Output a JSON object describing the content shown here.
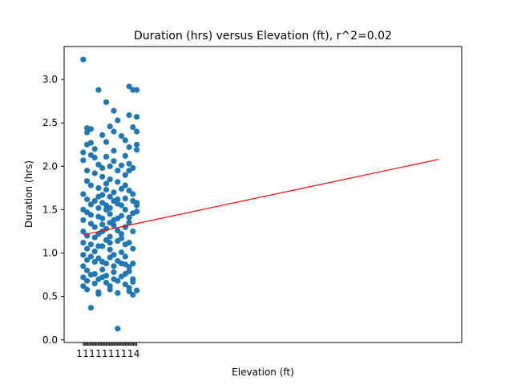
{
  "chart_data": {
    "type": "scatter",
    "title": "Duration (hrs) versus Elevation (ft), r^2=0.02",
    "xlabel": "Elevation (ft)",
    "ylabel": "Duration (hrs)",
    "ylim": [
      -0.03,
      3.38
    ],
    "xlim": [
      0,
      104
    ],
    "y_ticks": [
      "0.0",
      "0.5",
      "1.0",
      "1.5",
      "2.0",
      "2.5",
      "3.0"
    ],
    "y_tick_values": [
      0.0,
      0.5,
      1.0,
      1.5,
      2.0,
      2.5,
      3.0
    ],
    "x_tick_labels_overlapping": [
      "1",
      "4"
    ],
    "grid": false,
    "point_color": "#1f77b4",
    "fit_line_color": "#ff0000",
    "fit_line": {
      "x": [
        5,
        98
      ],
      "y": [
        1.21,
        2.08
      ]
    },
    "points": [
      [
        5,
        3.23
      ],
      [
        9,
        2.88
      ],
      [
        11,
        2.74
      ],
      [
        13,
        2.64
      ],
      [
        14,
        2.53
      ],
      [
        17,
        2.92
      ],
      [
        18,
        2.88
      ],
      [
        19,
        2.88
      ],
      [
        6,
        2.44
      ],
      [
        6,
        2.39
      ],
      [
        7,
        2.43
      ],
      [
        12,
        2.46
      ],
      [
        17,
        2.59
      ],
      [
        19,
        2.57
      ],
      [
        19,
        2.4
      ],
      [
        6,
        2.25
      ],
      [
        7,
        2.27
      ],
      [
        10,
        2.36
      ],
      [
        11,
        2.28
      ],
      [
        13,
        2.18
      ],
      [
        16,
        2.3
      ],
      [
        17,
        2.22
      ],
      [
        19,
        2.19
      ],
      [
        5,
        2.16
      ],
      [
        7,
        2.13
      ],
      [
        8,
        2.1
      ],
      [
        11,
        2.11
      ],
      [
        13,
        2.06
      ],
      [
        15,
        2.01
      ],
      [
        17,
        2.03
      ],
      [
        5,
        2.07
      ],
      [
        6,
        1.95
      ],
      [
        8,
        1.92
      ],
      [
        10,
        1.88
      ],
      [
        12,
        1.85
      ],
      [
        14,
        1.82
      ],
      [
        16,
        1.9
      ],
      [
        17,
        1.95
      ],
      [
        6,
        1.83
      ],
      [
        7,
        1.78
      ],
      [
        9,
        1.75
      ],
      [
        11,
        1.73
      ],
      [
        13,
        1.7
      ],
      [
        15,
        1.74
      ],
      [
        17,
        1.72
      ],
      [
        18,
        1.68
      ],
      [
        5,
        1.68
      ],
      [
        6,
        1.62
      ],
      [
        8,
        1.6
      ],
      [
        10,
        1.58
      ],
      [
        11,
        1.55
      ],
      [
        12,
        1.52
      ],
      [
        14,
        1.57
      ],
      [
        15,
        1.55
      ],
      [
        16,
        1.5
      ],
      [
        19,
        1.58
      ],
      [
        5,
        1.5
      ],
      [
        6,
        1.47
      ],
      [
        7,
        1.44
      ],
      [
        9,
        1.42
      ],
      [
        10,
        1.4
      ],
      [
        12,
        1.45
      ],
      [
        13,
        1.38
      ],
      [
        15,
        1.43
      ],
      [
        17,
        1.41
      ],
      [
        18,
        1.46
      ],
      [
        5,
        1.38
      ],
      [
        7,
        1.34
      ],
      [
        8,
        1.3
      ],
      [
        10,
        1.33
      ],
      [
        11,
        1.28
      ],
      [
        13,
        1.32
      ],
      [
        14,
        1.26
      ],
      [
        16,
        1.3
      ],
      [
        17,
        1.35
      ],
      [
        18,
        1.25
      ],
      [
        5,
        1.25
      ],
      [
        6,
        1.2
      ],
      [
        8,
        1.18
      ],
      [
        9,
        1.22
      ],
      [
        11,
        1.15
      ],
      [
        12,
        1.19
      ],
      [
        14,
        1.14
      ],
      [
        15,
        1.17
      ],
      [
        17,
        1.12
      ],
      [
        5,
        1.12
      ],
      [
        6,
        1.05
      ],
      [
        8,
        1.02
      ],
      [
        10,
        1.08
      ],
      [
        12,
        1.04
      ],
      [
        13,
        0.98
      ],
      [
        15,
        1.01
      ],
      [
        16,
        0.96
      ],
      [
        18,
        1.05
      ],
      [
        5,
        0.98
      ],
      [
        6,
        0.92
      ],
      [
        8,
        0.9
      ],
      [
        9,
        0.94
      ],
      [
        11,
        0.88
      ],
      [
        13,
        0.85
      ],
      [
        14,
        0.91
      ],
      [
        16,
        0.87
      ],
      [
        17,
        0.84
      ],
      [
        18,
        0.88
      ],
      [
        5,
        0.85
      ],
      [
        6,
        0.8
      ],
      [
        8,
        0.76
      ],
      [
        10,
        0.81
      ],
      [
        11,
        0.74
      ],
      [
        13,
        0.78
      ],
      [
        15,
        0.73
      ],
      [
        17,
        0.79
      ],
      [
        18,
        0.7
      ],
      [
        5,
        0.72
      ],
      [
        6,
        0.68
      ],
      [
        8,
        0.65
      ],
      [
        9,
        0.7
      ],
      [
        11,
        0.66
      ],
      [
        12,
        0.62
      ],
      [
        14,
        0.68
      ],
      [
        16,
        0.64
      ],
      [
        17,
        0.6
      ],
      [
        18,
        0.67
      ],
      [
        5,
        0.62
      ],
      [
        6,
        0.58
      ],
      [
        9,
        0.55
      ],
      [
        12,
        0.58
      ],
      [
        14,
        0.54
      ],
      [
        17,
        0.56
      ],
      [
        19,
        0.57
      ],
      [
        18,
        0.52
      ],
      [
        9,
        0.53
      ],
      [
        7,
        0.37
      ],
      [
        14,
        0.13
      ],
      [
        19,
        1.55
      ],
      [
        19,
        1.48
      ],
      [
        18,
        1.6
      ],
      [
        14,
        1.62
      ],
      [
        12,
        1.65
      ],
      [
        10,
        1.67
      ],
      [
        16,
        1.78
      ],
      [
        14,
        1.95
      ],
      [
        12,
        2.0
      ],
      [
        16,
        2.12
      ],
      [
        10,
        1.98
      ],
      [
        9,
        2.02
      ],
      [
        18,
        1.98
      ],
      [
        11,
        1.8
      ],
      [
        13,
        1.6
      ],
      [
        16,
        1.63
      ],
      [
        7,
        1.56
      ],
      [
        9,
        1.52
      ],
      [
        12,
        1.35
      ],
      [
        14,
        1.4
      ],
      [
        10,
        1.25
      ],
      [
        7,
        1.1
      ],
      [
        9,
        1.08
      ],
      [
        12,
        1.12
      ],
      [
        15,
        1.22
      ],
      [
        16,
        1.1
      ],
      [
        7,
        0.96
      ],
      [
        10,
        0.9
      ],
      [
        12,
        0.95
      ],
      [
        15,
        0.88
      ],
      [
        7,
        0.75
      ],
      [
        10,
        0.72
      ],
      [
        13,
        0.7
      ],
      [
        16,
        0.76
      ],
      [
        8,
        2.2
      ],
      [
        15,
        2.35
      ],
      [
        18,
        2.45
      ],
      [
        19,
        2.25
      ],
      [
        13,
        2.4
      ],
      [
        9,
        1.65
      ],
      [
        11,
        1.5
      ]
    ]
  }
}
